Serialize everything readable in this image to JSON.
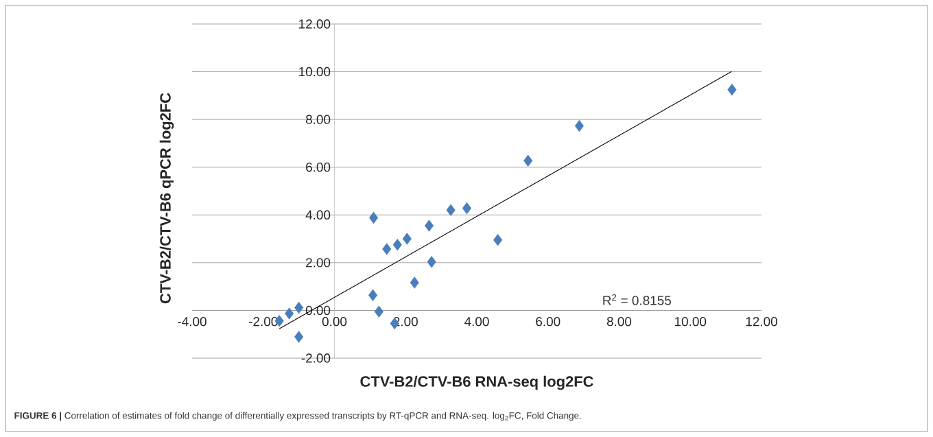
{
  "chart_data": {
    "type": "scatter",
    "xlabel": "CTV-B2/CTV-B6 RNA-seq log2FC",
    "ylabel": "CTV-B2/CTV-B6 qPCR log2FC",
    "annotations": [
      "R$^{2}$ = 0.8155",
      "**FIGURE 6 |** Correlation of estimates of fold change of differentially expressed transcripts by RT-qPCR and RNA-seq. log$_{2}$FC, Fold Change."
    ],
    "series": [
      {
        "color": "#4a7ebb",
        "marker": "diamond",
        "x": [
          -1.55,
          -1.27,
          -1.0,
          -1.0,
          1.08,
          1.1,
          1.25,
          1.47,
          1.69,
          1.77,
          2.04,
          2.25,
          2.66,
          2.73,
          3.27,
          3.72,
          4.59,
          5.44,
          6.88,
          11.17
        ],
        "values": [
          -0.44,
          -0.13,
          0.11,
          -1.11,
          0.64,
          3.88,
          -0.05,
          2.57,
          -0.55,
          2.75,
          3.0,
          1.16,
          3.55,
          2.03,
          4.2,
          4.28,
          2.95,
          6.27,
          7.73,
          9.25
        ]
      },
      {
        "type": "line",
        "color": "#000000",
        "marker": "none",
        "line_style": "solid",
        "x": [
          -1.55,
          11.16
        ],
        "values": [
          -0.77,
          10.01
        ]
      }
    ],
    "xlim": [
      -4,
      12
    ],
    "ylim": [
      -2,
      12
    ],
    "xticks": [
      {
        "value": -4,
        "label": "-4.00"
      },
      {
        "value": -2,
        "label": "-2.00"
      },
      {
        "value": 0,
        "label": "0.00"
      },
      {
        "value": 2,
        "label": "2.00"
      },
      {
        "value": 4,
        "label": "4.00"
      },
      {
        "value": 6,
        "label": "6.00"
      },
      {
        "value": 8,
        "label": "8.00"
      },
      {
        "value": 10,
        "label": "10.00"
      },
      {
        "value": 12,
        "label": "12.00"
      }
    ],
    "yticks": [
      {
        "value": -2,
        "label": "-2.00"
      },
      {
        "value": 0,
        "label": "0.00"
      },
      {
        "value": 2,
        "label": "2.00"
      },
      {
        "value": 4,
        "label": "4.00"
      },
      {
        "value": 6,
        "label": "6.00"
      },
      {
        "value": 8,
        "label": "8.00"
      },
      {
        "value": 10,
        "label": "10.00"
      },
      {
        "value": 12,
        "label": "12.00"
      }
    ],
    "grid": "y"
  }
}
